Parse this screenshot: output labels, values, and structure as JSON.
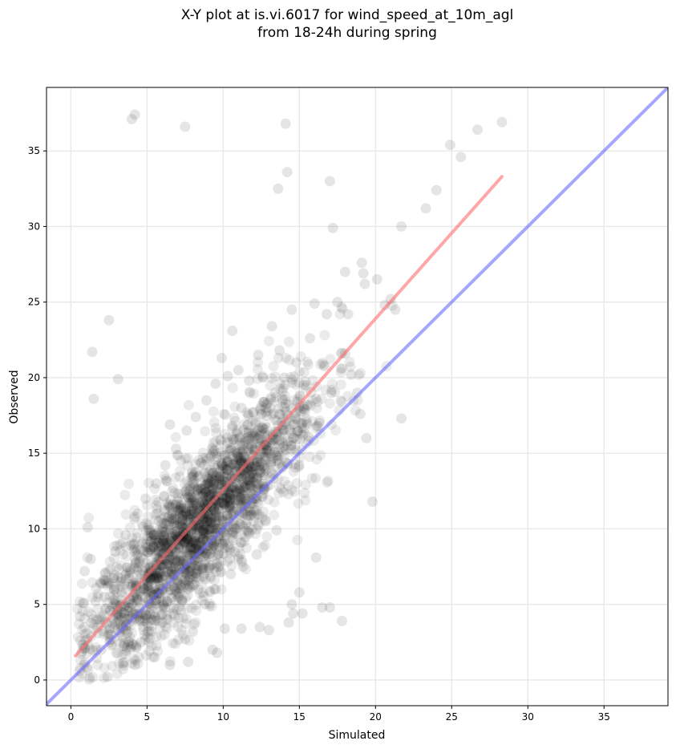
{
  "chart_data": {
    "type": "scatter",
    "title": "X-Y plot at is.vi.6017 for wind_speed_at_10m_agl",
    "subtitle": "from 18-24h during spring",
    "xlabel": "Simulated",
    "ylabel": "Observed",
    "xlim": [
      -1.6,
      39.2
    ],
    "ylim": [
      -1.7,
      39.2
    ],
    "x_ticks": [
      0,
      5,
      10,
      15,
      20,
      25,
      30,
      35
    ],
    "y_ticks": [
      0,
      5,
      10,
      15,
      20,
      25,
      30,
      35
    ],
    "grid": true,
    "colors": {
      "points": "#000000",
      "fit_line": "#ff6b6b",
      "identity_line": "#6b6bff",
      "grid": "#e8e8e8"
    },
    "fit_line": {
      "x": [
        0.3,
        28.3
      ],
      "y": [
        1.6,
        33.3
      ]
    },
    "identity_line": {
      "x": [
        -1.6,
        39.2
      ],
      "y": [
        -1.6,
        39.2
      ]
    },
    "point_cloud_center": {
      "x_mean": 8.5,
      "y_mean": 10.2
    },
    "points": [
      [
        4.0,
        37.1
      ],
      [
        4.2,
        37.4
      ],
      [
        7.5,
        36.6
      ],
      [
        14.1,
        36.8
      ],
      [
        28.3,
        36.9
      ],
      [
        26.7,
        36.4
      ],
      [
        24.9,
        35.4
      ],
      [
        25.6,
        34.6
      ],
      [
        14.2,
        33.6
      ],
      [
        13.6,
        32.5
      ],
      [
        17.0,
        33.0
      ],
      [
        24.0,
        32.4
      ],
      [
        23.3,
        31.2
      ],
      [
        17.2,
        29.9
      ],
      [
        21.7,
        30.0
      ],
      [
        19.1,
        27.6
      ],
      [
        19.2,
        26.9
      ],
      [
        18.0,
        27.0
      ],
      [
        19.3,
        26.2
      ],
      [
        20.1,
        26.5
      ],
      [
        21.0,
        25.2
      ],
      [
        21.3,
        24.5
      ],
      [
        20.6,
        24.8
      ],
      [
        2.5,
        23.8
      ],
      [
        1.4,
        21.7
      ],
      [
        1.5,
        18.6
      ],
      [
        3.1,
        19.9
      ],
      [
        6.5,
        16.9
      ],
      [
        19.8,
        11.8
      ],
      [
        21.7,
        17.3
      ],
      [
        17.8,
        3.9
      ],
      [
        16.1,
        8.1
      ],
      [
        14.3,
        3.8
      ],
      [
        14.6,
        4.4
      ],
      [
        15.2,
        4.4
      ],
      [
        13.0,
        3.3
      ],
      [
        16.5,
        4.8
      ],
      [
        17.0,
        4.8
      ],
      [
        14.5,
        5.0
      ],
      [
        15.0,
        5.8
      ],
      [
        9.3,
        2.0
      ],
      [
        9.6,
        1.8
      ],
      [
        11.2,
        3.4
      ],
      [
        12.4,
        3.5
      ],
      [
        10.1,
        3.4
      ],
      [
        2.4,
        0.2
      ],
      [
        4.2,
        1.0
      ],
      [
        6.5,
        1.0
      ],
      [
        7.7,
        1.2
      ],
      [
        3.4,
        1.1
      ],
      [
        0.6,
        4.2
      ],
      [
        0.9,
        7.2
      ],
      [
        1.1,
        10.1
      ],
      [
        0.8,
        5.1
      ],
      [
        1.3,
        8.0
      ],
      [
        18.0,
        21.6
      ],
      [
        18.4,
        20.2
      ],
      [
        18.8,
        19.0
      ],
      [
        19.4,
        16.0
      ],
      [
        19.0,
        17.6
      ],
      [
        16.8,
        24.2
      ],
      [
        17.5,
        25.0
      ],
      [
        18.2,
        24.2
      ],
      [
        16.0,
        24.9
      ],
      [
        15.7,
        22.6
      ],
      [
        9.9,
        21.3
      ],
      [
        10.6,
        23.1
      ],
      [
        13.2,
        23.4
      ],
      [
        14.5,
        24.5
      ],
      [
        12.3,
        21.5
      ],
      [
        12.8,
        10.5
      ],
      [
        13.5,
        9.9
      ],
      [
        12.2,
        8.3
      ],
      [
        11.3,
        7.5
      ],
      [
        10.5,
        7.0
      ],
      [
        9.5,
        6.0
      ],
      [
        8.8,
        5.0
      ],
      [
        8.0,
        3.2
      ],
      [
        7.5,
        2.7
      ],
      [
        5.5,
        1.5
      ],
      [
        15.3,
        18.1
      ],
      [
        16.1,
        18.6
      ],
      [
        17.1,
        19.0
      ],
      [
        15.0,
        14.2
      ],
      [
        14.6,
        16.0
      ],
      [
        2.0,
        2.0
      ],
      [
        2.6,
        3.0
      ],
      [
        3.3,
        3.5
      ],
      [
        3.8,
        4.2
      ],
      [
        4.4,
        5.2
      ],
      [
        4.8,
        6.0
      ],
      [
        5.2,
        6.7
      ],
      [
        5.9,
        7.6
      ],
      [
        6.4,
        8.4
      ],
      [
        7.0,
        9.3
      ],
      [
        7.4,
        10.0
      ],
      [
        8.0,
        11.0
      ],
      [
        8.6,
        11.8
      ],
      [
        9.1,
        12.6
      ],
      [
        9.6,
        13.5
      ],
      [
        10.2,
        14.2
      ],
      [
        10.9,
        15.0
      ],
      [
        11.5,
        16.0
      ],
      [
        12.1,
        17.0
      ],
      [
        12.8,
        18.0
      ],
      [
        13.4,
        19.0
      ],
      [
        14.0,
        20.0
      ],
      [
        14.8,
        21.0
      ],
      [
        3.1,
        6.8
      ],
      [
        2.2,
        5.5
      ],
      [
        1.7,
        4.0
      ],
      [
        2.9,
        8.5
      ],
      [
        3.6,
        9.6
      ],
      [
        4.2,
        10.8
      ],
      [
        4.9,
        12.0
      ],
      [
        5.6,
        13.0
      ],
      [
        6.2,
        14.2
      ],
      [
        6.9,
        15.3
      ],
      [
        7.6,
        16.5
      ],
      [
        8.2,
        17.4
      ],
      [
        8.9,
        18.5
      ],
      [
        9.5,
        19.6
      ],
      [
        10.3,
        20.1
      ],
      [
        11.0,
        20.5
      ],
      [
        11.7,
        19.8
      ],
      [
        4.6,
        2.5
      ],
      [
        5.3,
        3.2
      ],
      [
        6.0,
        3.8
      ],
      [
        6.7,
        4.4
      ],
      [
        7.3,
        5.2
      ],
      [
        8.1,
        6.3
      ],
      [
        8.7,
        7.4
      ],
      [
        9.3,
        8.2
      ],
      [
        10.0,
        9.0
      ],
      [
        10.8,
        10.0
      ],
      [
        11.4,
        11.0
      ],
      [
        12.0,
        12.0
      ],
      [
        12.7,
        12.8
      ],
      [
        13.3,
        13.6
      ],
      [
        14.1,
        14.4
      ],
      [
        14.8,
        15.2
      ],
      [
        15.6,
        16.1
      ],
      [
        16.3,
        17.0
      ],
      [
        6.3,
        10.5
      ],
      [
        5.0,
        8.5
      ],
      [
        7.8,
        12.5
      ],
      [
        8.4,
        13.5
      ],
      [
        9.2,
        14.8
      ],
      [
        10.6,
        16.8
      ],
      [
        11.2,
        18.0
      ],
      [
        12.6,
        20.0
      ],
      [
        13.7,
        21.8
      ],
      [
        7.2,
        11.2
      ],
      [
        6.0,
        9.8
      ],
      [
        5.4,
        8.8
      ]
    ]
  }
}
